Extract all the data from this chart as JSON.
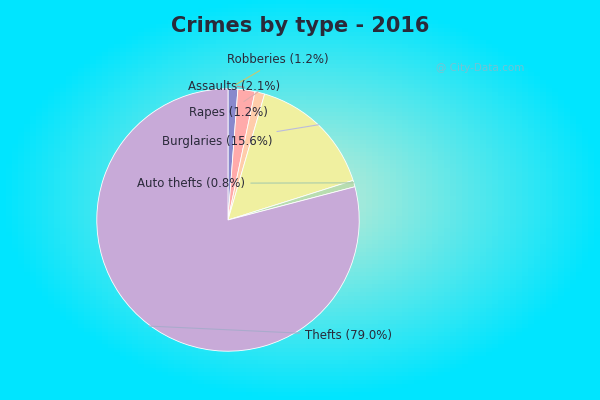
{
  "title": "Crimes by type - 2016",
  "clockwise_labels": [
    "Robberies",
    "Assaults",
    "Rapes",
    "Burglaries",
    "Auto thefts",
    "Thefts"
  ],
  "clockwise_values": [
    1.2,
    2.1,
    1.2,
    15.6,
    0.8,
    79.0
  ],
  "clockwise_colors": [
    "#8888cc",
    "#ffaaaa",
    "#ffccaa",
    "#f0f0a0",
    "#b8ddb0",
    "#c8aad8"
  ],
  "clockwise_pcts": [
    "Robberies (1.2%)",
    "Assaults (2.1%)",
    "Rapes (1.2%)",
    "Burglaries (15.6%)",
    "Auto thefts (0.8%)",
    "Thefts (79.0%)"
  ],
  "bg_cyan": "#00e5ff",
  "bg_center": "#d0edd8",
  "title_fontsize": 15,
  "title_color": "#2a2a3a",
  "label_fontsize": 8.5,
  "watermark": "@ City-Data.com"
}
